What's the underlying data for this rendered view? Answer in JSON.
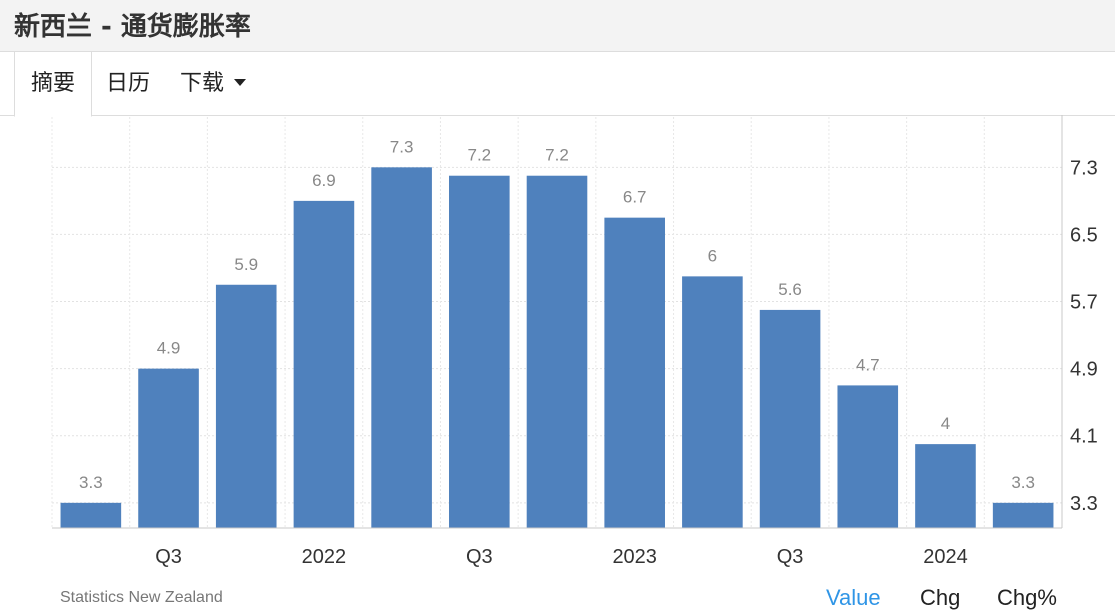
{
  "page": {
    "title": "新西兰 - 通货膨胀率"
  },
  "tabs": [
    {
      "label": "摘要",
      "active": true
    },
    {
      "label": "日历",
      "active": false
    },
    {
      "label": "下载",
      "active": false,
      "dropdown": true
    }
  ],
  "chart_data": {
    "type": "bar",
    "title": "",
    "xlabel": "",
    "ylabel": "",
    "categories": [
      "",
      "Q3",
      "",
      "2022",
      "",
      "Q3",
      "",
      "2023",
      "",
      "Q3",
      "",
      "2024",
      ""
    ],
    "values": [
      3.3,
      4.9,
      5.9,
      6.9,
      7.3,
      7.2,
      7.2,
      6.7,
      6,
      5.6,
      4.7,
      4,
      3.3
    ],
    "value_labels": [
      "3.3",
      "4.9",
      "5.9",
      "6.9",
      "7.3",
      "7.2",
      "7.2",
      "6.7",
      "6",
      "5.6",
      "4.7",
      "4",
      "3.3"
    ],
    "y_ticks": [
      3.3,
      4.1,
      4.9,
      5.7,
      6.5,
      7.3
    ],
    "y_tick_labels": [
      "3.3",
      "4.1",
      "4.9",
      "5.7",
      "6.5",
      "7.3"
    ],
    "ylim": [
      3.0,
      7.9
    ],
    "grid": true,
    "y_axis_position": "right",
    "bar_color": "#4f81bd",
    "label_color": "#888888"
  },
  "footer": {
    "source": "Statistics New Zealand",
    "modes": [
      {
        "label": "Value",
        "active": true
      },
      {
        "label": "Chg",
        "active": false
      },
      {
        "label": "Chg%",
        "active": false
      }
    ]
  }
}
